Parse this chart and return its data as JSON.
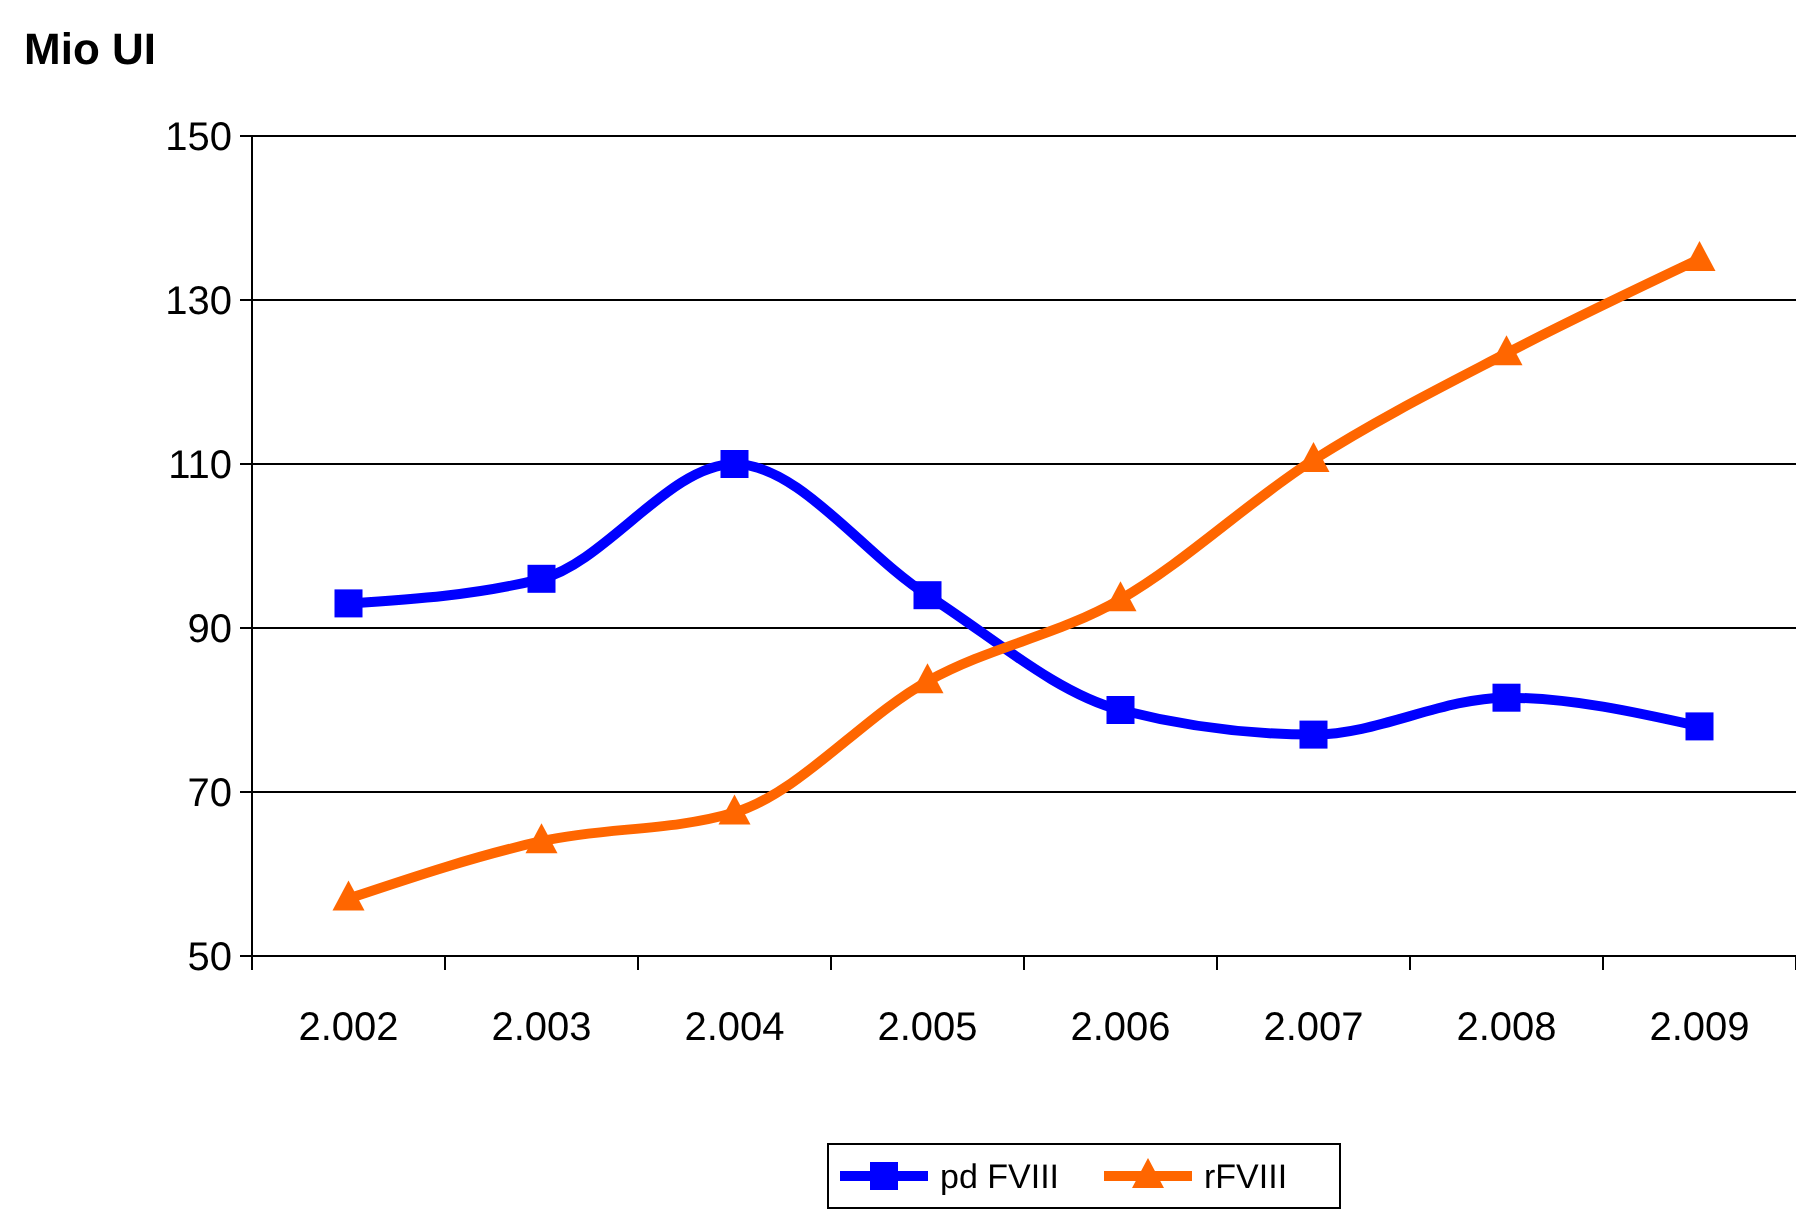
{
  "chart_data": {
    "type": "line",
    "ylabel": "Mio UI",
    "categories": [
      "2.002",
      "2.003",
      "2.004",
      "2.005",
      "2.006",
      "2.007",
      "2.008",
      "2.009"
    ],
    "series": [
      {
        "name": "pd FVIII",
        "color": "#0000ff",
        "marker": "square",
        "values": [
          93,
          96,
          110,
          94,
          80,
          77,
          81.5,
          78
        ]
      },
      {
        "name": "rFVIII",
        "color": "#ff6600",
        "marker": "triangle",
        "values": [
          57,
          64,
          67.5,
          83.5,
          93.5,
          110.5,
          123.5,
          135
        ]
      }
    ],
    "ylim": [
      50,
      150
    ],
    "yticks": [
      50,
      70,
      90,
      110,
      130,
      150
    ],
    "grid": "y",
    "legend": "bottom"
  }
}
